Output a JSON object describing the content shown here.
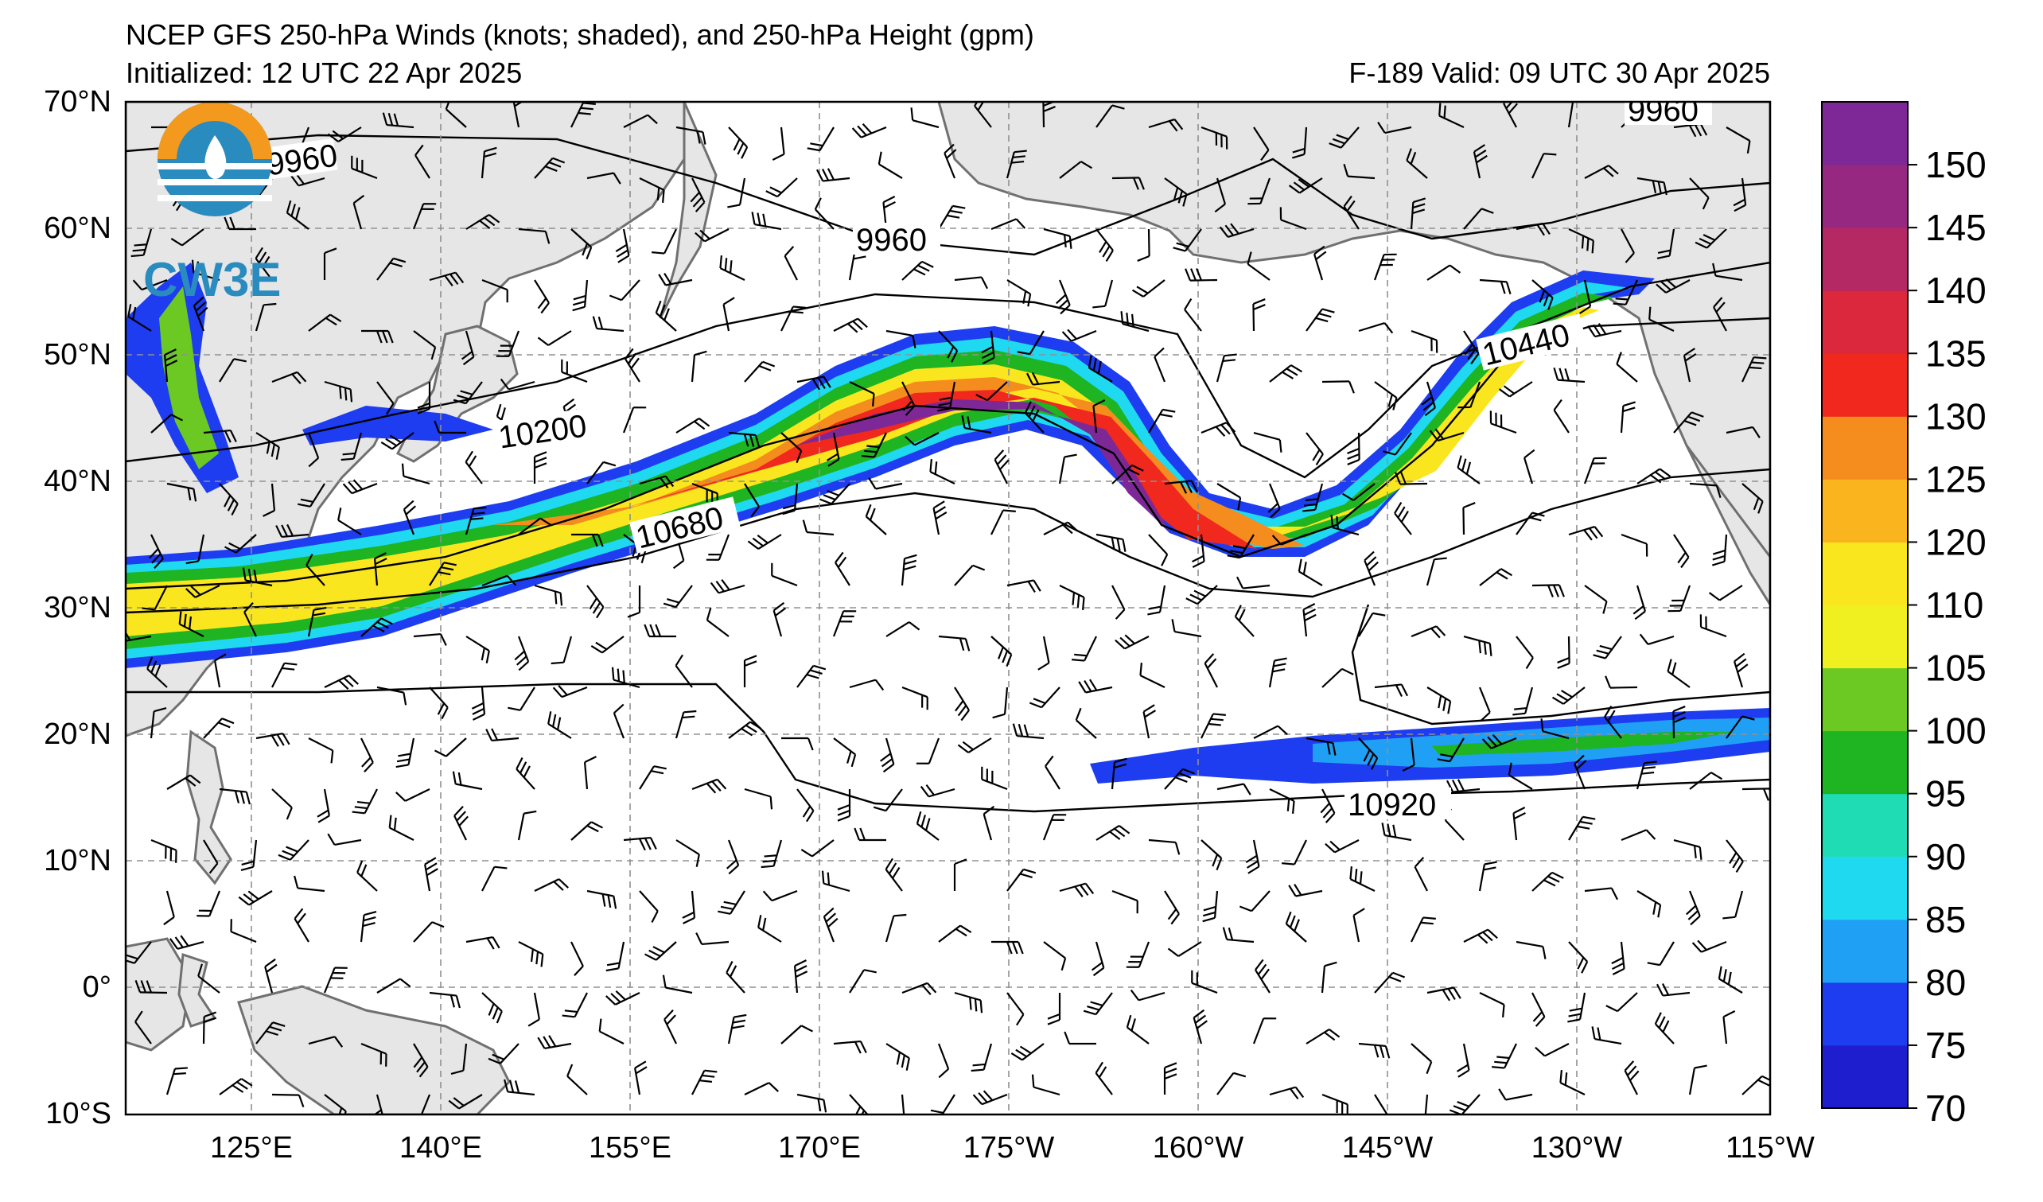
{
  "title": {
    "line1": "NCEP GFS 250-hPa Winds (knots; shaded), and 250-hPa Height (gpm)",
    "initialized": "Initialized: 12 UTC 22 Apr 2025",
    "valid": "F-189  Valid: 09 UTC 30 Apr 2025"
  },
  "logo": {
    "text": "CW3E",
    "icon": "cw3e-logo-icon"
  },
  "axes": {
    "lat_labels": [
      "70°N",
      "60°N",
      "50°N",
      "40°N",
      "30°N",
      "20°N",
      "10°N",
      "0°",
      "10°S"
    ],
    "lon_labels": [
      "125°E",
      "140°E",
      "155°E",
      "170°E",
      "175°W",
      "160°W",
      "145°W",
      "130°W",
      "115°W"
    ]
  },
  "contours": {
    "labels": [
      "9960",
      "9960",
      "9960",
      "10200",
      "10440",
      "10680",
      "10920"
    ]
  },
  "colorbar": {
    "labels": [
      "150",
      "145",
      "140",
      "135",
      "130",
      "125",
      "120",
      "110",
      "105",
      "100",
      "95",
      "90",
      "85",
      "80",
      "75",
      "70"
    ],
    "colors": [
      "#1e1ecf",
      "#1e3cf0",
      "#1fa0f5",
      "#1fd9f0",
      "#20dcb4",
      "#1eb422",
      "#6cc823",
      "#f0f020",
      "#fae61e",
      "#fab41e",
      "#f58c1e",
      "#f0281e",
      "#dc283c",
      "#b42864",
      "#962882",
      "#7d2896"
    ]
  },
  "colors": {
    "land": "#e6e6e6",
    "ocean": "#ffffff",
    "coast": "#707070",
    "grid": "#909090"
  }
}
